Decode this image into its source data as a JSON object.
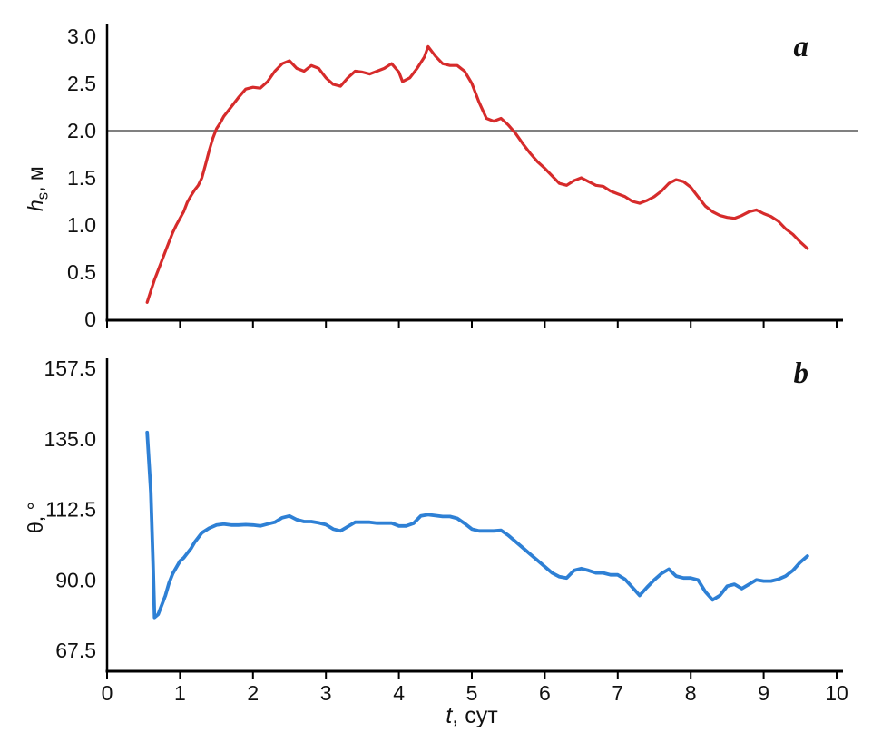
{
  "figure": {
    "background": "#ffffff"
  },
  "labels": {
    "ylabel_a_var": "h",
    "ylabel_a_sub": "s",
    "ylabel_a_unit": ", м",
    "ylabel_b": "θ, °",
    "xlabel_var": "t",
    "xlabel_unit": ", сут"
  },
  "chart_data": [
    {
      "type": "line",
      "panel_label": "a",
      "ylabel": "hs, м",
      "xlabel": "t, сут",
      "xlim": [
        0,
        10
      ],
      "ylim": [
        0,
        3.0
      ],
      "grid": false,
      "legend": "none",
      "ref_line": {
        "y": 2.0,
        "color": "#808080"
      },
      "yticks": [
        {
          "v": 0,
          "label": "0"
        },
        {
          "v": 0.5,
          "label": "0.5"
        },
        {
          "v": 1.0,
          "label": "1.0"
        },
        {
          "v": 1.5,
          "label": "1.5"
        },
        {
          "v": 2.0,
          "label": "2.0"
        },
        {
          "v": 2.5,
          "label": "2.5"
        },
        {
          "v": 3.0,
          "label": "3.0"
        }
      ],
      "xticks": [
        {
          "v": 0,
          "label": ""
        },
        {
          "v": 1,
          "label": ""
        },
        {
          "v": 2,
          "label": ""
        },
        {
          "v": 3,
          "label": ""
        },
        {
          "v": 4,
          "label": ""
        },
        {
          "v": 5,
          "label": ""
        },
        {
          "v": 6,
          "label": ""
        },
        {
          "v": 7,
          "label": ""
        },
        {
          "v": 8,
          "label": ""
        },
        {
          "v": 9,
          "label": ""
        },
        {
          "v": 10,
          "label": ""
        }
      ],
      "series": [
        {
          "name": "hs",
          "color": "#d62b2b",
          "width": 3.2,
          "points": [
            [
              0.55,
              0.18
            ],
            [
              0.6,
              0.3
            ],
            [
              0.65,
              0.42
            ],
            [
              0.7,
              0.52
            ],
            [
              0.75,
              0.62
            ],
            [
              0.8,
              0.72
            ],
            [
              0.85,
              0.82
            ],
            [
              0.9,
              0.92
            ],
            [
              0.95,
              1.0
            ],
            [
              1.0,
              1.07
            ],
            [
              1.05,
              1.14
            ],
            [
              1.1,
              1.24
            ],
            [
              1.15,
              1.31
            ],
            [
              1.2,
              1.37
            ],
            [
              1.25,
              1.42
            ],
            [
              1.3,
              1.5
            ],
            [
              1.35,
              1.64
            ],
            [
              1.4,
              1.79
            ],
            [
              1.45,
              1.92
            ],
            [
              1.5,
              2.02
            ],
            [
              1.55,
              2.08
            ],
            [
              1.6,
              2.15
            ],
            [
              1.7,
              2.25
            ],
            [
              1.8,
              2.35
            ],
            [
              1.9,
              2.44
            ],
            [
              2.0,
              2.46
            ],
            [
              2.1,
              2.45
            ],
            [
              2.2,
              2.52
            ],
            [
              2.3,
              2.63
            ],
            [
              2.4,
              2.71
            ],
            [
              2.5,
              2.74
            ],
            [
              2.6,
              2.66
            ],
            [
              2.7,
              2.63
            ],
            [
              2.8,
              2.69
            ],
            [
              2.9,
              2.66
            ],
            [
              3.0,
              2.56
            ],
            [
              3.1,
              2.49
            ],
            [
              3.2,
              2.47
            ],
            [
              3.3,
              2.56
            ],
            [
              3.4,
              2.63
            ],
            [
              3.5,
              2.62
            ],
            [
              3.6,
              2.6
            ],
            [
              3.7,
              2.63
            ],
            [
              3.8,
              2.66
            ],
            [
              3.9,
              2.71
            ],
            [
              4.0,
              2.62
            ],
            [
              4.05,
              2.52
            ],
            [
              4.15,
              2.56
            ],
            [
              4.25,
              2.66
            ],
            [
              4.35,
              2.78
            ],
            [
              4.4,
              2.89
            ],
            [
              4.5,
              2.79
            ],
            [
              4.6,
              2.71
            ],
            [
              4.7,
              2.69
            ],
            [
              4.8,
              2.69
            ],
            [
              4.9,
              2.63
            ],
            [
              5.0,
              2.5
            ],
            [
              5.1,
              2.3
            ],
            [
              5.2,
              2.13
            ],
            [
              5.3,
              2.1
            ],
            [
              5.4,
              2.13
            ],
            [
              5.5,
              2.06
            ],
            [
              5.6,
              1.97
            ],
            [
              5.7,
              1.86
            ],
            [
              5.8,
              1.76
            ],
            [
              5.9,
              1.67
            ],
            [
              6.0,
              1.6
            ],
            [
              6.1,
              1.52
            ],
            [
              6.2,
              1.44
            ],
            [
              6.3,
              1.42
            ],
            [
              6.4,
              1.47
            ],
            [
              6.5,
              1.5
            ],
            [
              6.6,
              1.46
            ],
            [
              6.7,
              1.42
            ],
            [
              6.8,
              1.41
            ],
            [
              6.9,
              1.36
            ],
            [
              7.0,
              1.33
            ],
            [
              7.1,
              1.3
            ],
            [
              7.2,
              1.25
            ],
            [
              7.3,
              1.23
            ],
            [
              7.4,
              1.26
            ],
            [
              7.5,
              1.3
            ],
            [
              7.6,
              1.36
            ],
            [
              7.7,
              1.44
            ],
            [
              7.8,
              1.48
            ],
            [
              7.9,
              1.46
            ],
            [
              8.0,
              1.4
            ],
            [
              8.1,
              1.3
            ],
            [
              8.2,
              1.2
            ],
            [
              8.3,
              1.14
            ],
            [
              8.4,
              1.1
            ],
            [
              8.5,
              1.08
            ],
            [
              8.6,
              1.07
            ],
            [
              8.7,
              1.1
            ],
            [
              8.8,
              1.14
            ],
            [
              8.9,
              1.16
            ],
            [
              9.0,
              1.12
            ],
            [
              9.1,
              1.09
            ],
            [
              9.2,
              1.04
            ],
            [
              9.3,
              0.96
            ],
            [
              9.4,
              0.9
            ],
            [
              9.5,
              0.82
            ],
            [
              9.6,
              0.75
            ]
          ]
        }
      ]
    },
    {
      "type": "line",
      "panel_label": "b",
      "ylabel": "θ, °",
      "xlabel": "t, сут",
      "xlim": [
        0,
        10
      ],
      "ylim": [
        67.5,
        157.5
      ],
      "grid": false,
      "legend": "none",
      "yticks": [
        {
          "v": 67.5,
          "label": "67.5"
        },
        {
          "v": 90.0,
          "label": "90.0"
        },
        {
          "v": 112.5,
          "label": "112.5"
        },
        {
          "v": 135.0,
          "label": "135.0"
        },
        {
          "v": 157.5,
          "label": "157.5"
        }
      ],
      "xticks": [
        {
          "v": 0,
          "label": "0"
        },
        {
          "v": 1,
          "label": "1"
        },
        {
          "v": 2,
          "label": "2"
        },
        {
          "v": 3,
          "label": "3"
        },
        {
          "v": 4,
          "label": "4"
        },
        {
          "v": 5,
          "label": "5"
        },
        {
          "v": 6,
          "label": "6"
        },
        {
          "v": 7,
          "label": "7"
        },
        {
          "v": 8,
          "label": "8"
        },
        {
          "v": 9,
          "label": "9"
        },
        {
          "v": 10,
          "label": "10"
        }
      ],
      "series": [
        {
          "name": "theta",
          "color": "#2e80d5",
          "width": 3.8,
          "points": [
            [
              0.55,
              137
            ],
            [
              0.6,
              118
            ],
            [
              0.63,
              95
            ],
            [
              0.65,
              78
            ],
            [
              0.7,
              79
            ],
            [
              0.75,
              82
            ],
            [
              0.8,
              85
            ],
            [
              0.85,
              89
            ],
            [
              0.9,
              92
            ],
            [
              0.95,
              94
            ],
            [
              1.0,
              96
            ],
            [
              1.05,
              97
            ],
            [
              1.1,
              98.5
            ],
            [
              1.15,
              100
            ],
            [
              1.2,
              102
            ],
            [
              1.3,
              105
            ],
            [
              1.4,
              106.5
            ],
            [
              1.5,
              107.5
            ],
            [
              1.6,
              107.8
            ],
            [
              1.7,
              107.5
            ],
            [
              1.8,
              107.5
            ],
            [
              1.9,
              107.6
            ],
            [
              2.0,
              107.5
            ],
            [
              2.1,
              107.2
            ],
            [
              2.2,
              107.8
            ],
            [
              2.3,
              108.4
            ],
            [
              2.4,
              109.8
            ],
            [
              2.5,
              110.4
            ],
            [
              2.6,
              109.2
            ],
            [
              2.7,
              108.6
            ],
            [
              2.8,
              108.6
            ],
            [
              2.9,
              108.2
            ],
            [
              3.0,
              107.6
            ],
            [
              3.1,
              106.2
            ],
            [
              3.2,
              105.6
            ],
            [
              3.3,
              107.0
            ],
            [
              3.4,
              108.4
            ],
            [
              3.5,
              108.4
            ],
            [
              3.6,
              108.4
            ],
            [
              3.7,
              108.1
            ],
            [
              3.8,
              108.1
            ],
            [
              3.9,
              108.1
            ],
            [
              4.0,
              107.2
            ],
            [
              4.1,
              107.2
            ],
            [
              4.2,
              108.0
            ],
            [
              4.3,
              110.4
            ],
            [
              4.4,
              110.8
            ],
            [
              4.5,
              110.5
            ],
            [
              4.6,
              110.2
            ],
            [
              4.7,
              110.2
            ],
            [
              4.8,
              109.6
            ],
            [
              4.9,
              108.0
            ],
            [
              5.0,
              106.2
            ],
            [
              5.1,
              105.6
            ],
            [
              5.2,
              105.6
            ],
            [
              5.3,
              105.6
            ],
            [
              5.4,
              105.8
            ],
            [
              5.5,
              104.2
            ],
            [
              5.6,
              102.2
            ],
            [
              5.7,
              100.2
            ],
            [
              5.8,
              98.2
            ],
            [
              5.9,
              96.2
            ],
            [
              6.0,
              94.2
            ],
            [
              6.1,
              92.2
            ],
            [
              6.2,
              91.0
            ],
            [
              6.3,
              90.6
            ],
            [
              6.4,
              93.0
            ],
            [
              6.5,
              93.6
            ],
            [
              6.6,
              93.0
            ],
            [
              6.7,
              92.2
            ],
            [
              6.8,
              92.2
            ],
            [
              6.9,
              91.6
            ],
            [
              7.0,
              91.6
            ],
            [
              7.1,
              90.2
            ],
            [
              7.2,
              87.6
            ],
            [
              7.3,
              85.0
            ],
            [
              7.4,
              87.6
            ],
            [
              7.5,
              90.0
            ],
            [
              7.6,
              92.0
            ],
            [
              7.7,
              93.4
            ],
            [
              7.8,
              91.2
            ],
            [
              7.9,
              90.6
            ],
            [
              8.0,
              90.6
            ],
            [
              8.1,
              90.0
            ],
            [
              8.2,
              86.2
            ],
            [
              8.3,
              83.6
            ],
            [
              8.4,
              85.0
            ],
            [
              8.5,
              88.0
            ],
            [
              8.6,
              88.6
            ],
            [
              8.7,
              87.2
            ],
            [
              8.8,
              88.6
            ],
            [
              8.9,
              90.0
            ],
            [
              9.0,
              89.6
            ],
            [
              9.1,
              89.6
            ],
            [
              9.2,
              90.2
            ],
            [
              9.3,
              91.2
            ],
            [
              9.4,
              93.0
            ],
            [
              9.5,
              95.6
            ],
            [
              9.6,
              97.6
            ]
          ]
        }
      ]
    }
  ]
}
